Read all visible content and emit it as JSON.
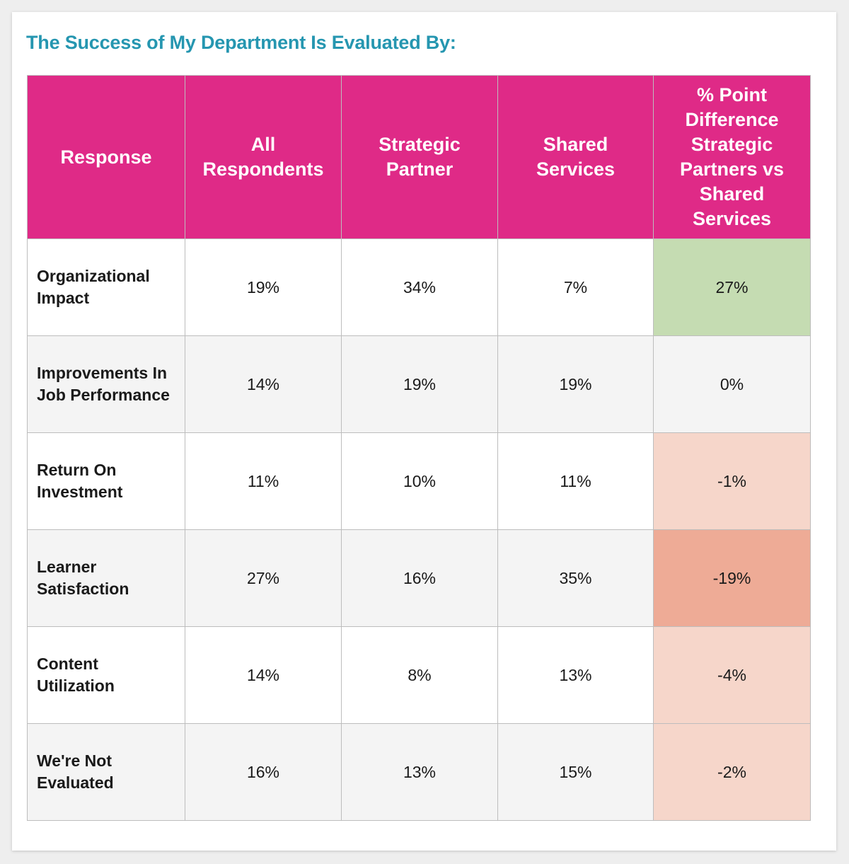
{
  "colors": {
    "title": "#2596b0",
    "header_bg": "#df2a87",
    "row_odd": "#ffffff",
    "row_even": "#f4f4f4",
    "positive_diff": "#c5dcb2",
    "small_negative_diff": "#f6d6ca",
    "large_negative_diff": "#eeab96"
  },
  "chart_data": {
    "type": "table",
    "title": "The Success of My Department Is Evaluated By:",
    "columns": [
      "Response",
      "All Respondents",
      "Strategic Partner",
      "Shared Services",
      "% Point Difference Strategic Partners vs Shared Services"
    ],
    "rows": [
      {
        "response": "Organizational Impact",
        "all": "19%",
        "strategic": "34%",
        "shared": "7%",
        "diff": "27%",
        "diff_color": "#c5dcb2"
      },
      {
        "response": "Improvements In Job Performance",
        "all": "14%",
        "strategic": "19%",
        "shared": "19%",
        "diff": "0%",
        "diff_color": "#f4f4f4"
      },
      {
        "response": "Return On Investment",
        "all": "11%",
        "strategic": "10%",
        "shared": "11%",
        "diff": "-1%",
        "diff_color": "#f6d6ca"
      },
      {
        "response": "Learner Satisfaction",
        "all": "27%",
        "strategic": "16%",
        "shared": "35%",
        "diff": "-19%",
        "diff_color": "#eeab96"
      },
      {
        "response": "Content Utilization",
        "all": "14%",
        "strategic": "8%",
        "shared": "13%",
        "diff": "-4%",
        "diff_color": "#f6d6ca"
      },
      {
        "response": "We're Not Evaluated",
        "all": "16%",
        "strategic": "13%",
        "shared": "15%",
        "diff": "-2%",
        "diff_color": "#f6d6ca"
      }
    ]
  }
}
